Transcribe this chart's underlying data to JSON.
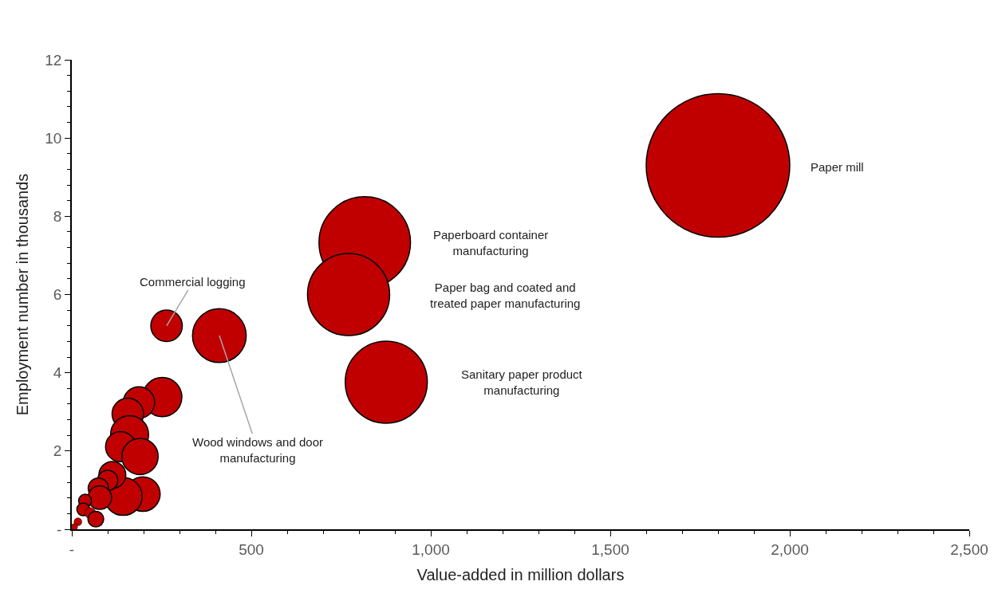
{
  "chart_data": {
    "type": "bubble",
    "xlabel": "Value-added in million dollars",
    "ylabel": "Employment number in thousands",
    "xlim": [
      0,
      2500
    ],
    "xticks": [
      {
        "value": 0,
        "label": "-"
      },
      {
        "value": 500,
        "label": "500"
      },
      {
        "value": 1000,
        "label": "1,000"
      },
      {
        "value": 1500,
        "label": "1,500"
      },
      {
        "value": 2000,
        "label": "2,000"
      },
      {
        "value": 2500,
        "label": "2,500"
      }
    ],
    "ylim": [
      0,
      12
    ],
    "yticks": [
      {
        "value": 0,
        "label": "-"
      },
      2,
      4,
      6,
      8,
      10,
      12
    ],
    "series": [
      {
        "color": "#c00000",
        "x": [
          1800,
          816,
          771,
          876,
          411,
          264,
          252,
          187,
          156,
          161,
          136,
          190,
          198,
          143,
          113,
          100,
          74,
          78,
          37,
          32,
          52,
          67,
          17,
          7
        ],
        "values": [
          9.3,
          7.33,
          6.0,
          3.76,
          4.95,
          5.2,
          3.38,
          3.24,
          2.95,
          2.42,
          2.11,
          1.86,
          0.9,
          0.84,
          1.39,
          1.25,
          1.05,
          0.81,
          0.73,
          0.51,
          0.41,
          0.26,
          0.19,
          0.06
        ],
        "sizes": [
          1,
          0.406,
          0.327,
          0.327,
          0.14,
          0.048,
          0.075,
          0.048,
          0.048,
          0.07,
          0.044,
          0.064,
          0.058,
          0.07,
          0.035,
          0.02,
          0.02,
          0.027,
          0.008,
          0.008,
          0.006,
          0.012,
          0.003,
          0.002
        ]
      }
    ],
    "annotations": [
      "Paper mill",
      "Paperboard container\nmanufacturing",
      "Paper bag and coated and\ntreated paper manufacturing",
      "Sanitary paper product\nmanufacturing",
      {
        "text": "Commercial logging",
        "x": 264,
        "y": 5.2
      },
      {
        "text": "Wood windows and door\nmanufacturing",
        "x": 411,
        "y": 4.95
      }
    ]
  }
}
